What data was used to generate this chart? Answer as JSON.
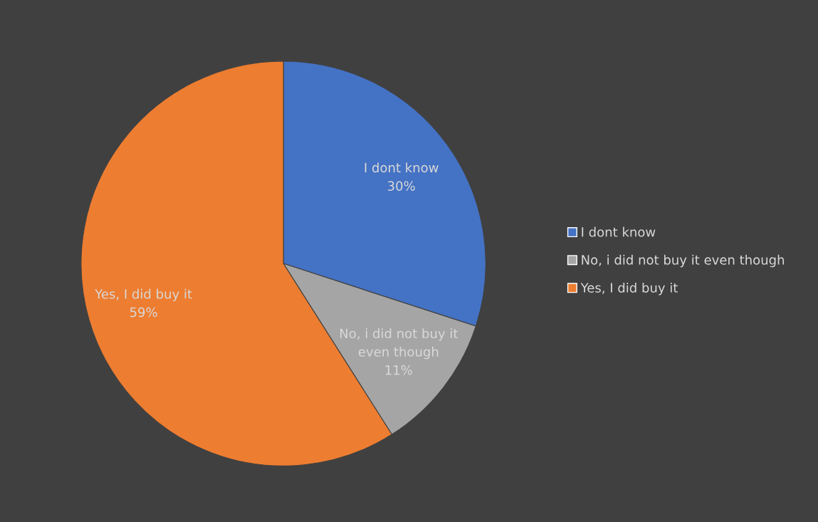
{
  "chart_data": {
    "type": "pie",
    "categories": [
      "I dont know",
      "No, i did not buy it even though",
      "Yes, I did buy it"
    ],
    "values": [
      30,
      11,
      59
    ],
    "value_labels": [
      "30%",
      "11%",
      "59%"
    ],
    "colors": [
      "#4472c4",
      "#a5a5a5",
      "#ed7d31"
    ],
    "legend": "right"
  }
}
